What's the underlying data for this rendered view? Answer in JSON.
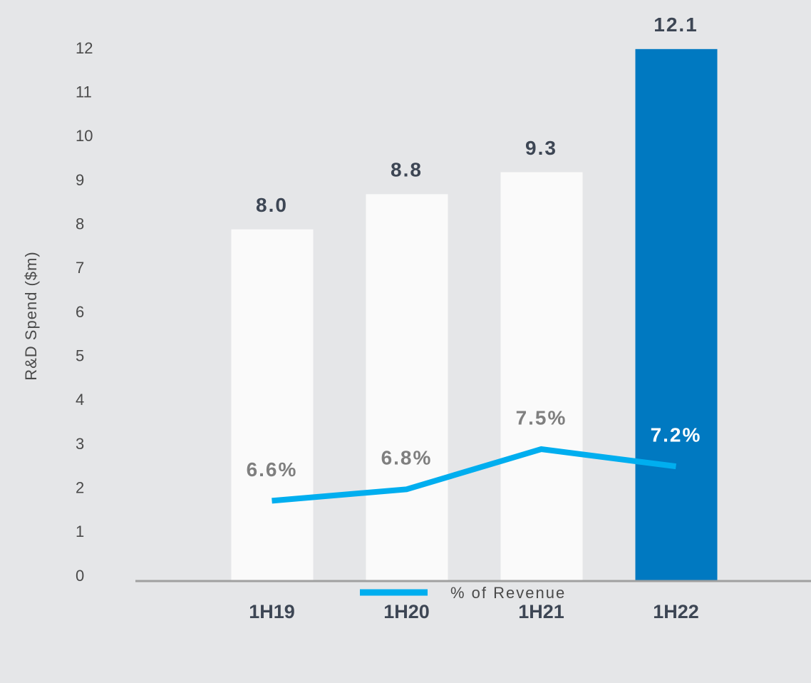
{
  "chart_data": {
    "type": "bar",
    "y_label": "R&D Spend ($m)",
    "categories": [
      "1H19",
      "1H20",
      "1H21",
      "1H22"
    ],
    "ylim": [
      0,
      12
    ],
    "yticks": [
      0,
      1,
      2,
      3,
      4,
      5,
      6,
      7,
      8,
      9,
      10,
      11,
      12
    ],
    "y2lim": [
      5.2,
      14.4
    ],
    "series": [
      {
        "type": "bar",
        "colors": [
          "#fafafa",
          "#fafafa",
          "#fafafa",
          "#0079c1"
        ],
        "values": [
          8.0,
          8.8,
          9.3,
          12.1
        ],
        "value_labels": [
          "8.0",
          "8.8",
          "9.3",
          "12.1"
        ]
      },
      {
        "type": "line",
        "name": "% of Revenue",
        "color": "#00aeef",
        "axis": "y2",
        "values": [
          6.6,
          6.8,
          7.5,
          7.2
        ],
        "value_labels": [
          "6.6%",
          "6.8%",
          "7.5%",
          "7.2%"
        ],
        "label_colors": [
          "#7f7f7f",
          "#7f7f7f",
          "#7f7f7f",
          "#ffffff"
        ]
      }
    ]
  }
}
